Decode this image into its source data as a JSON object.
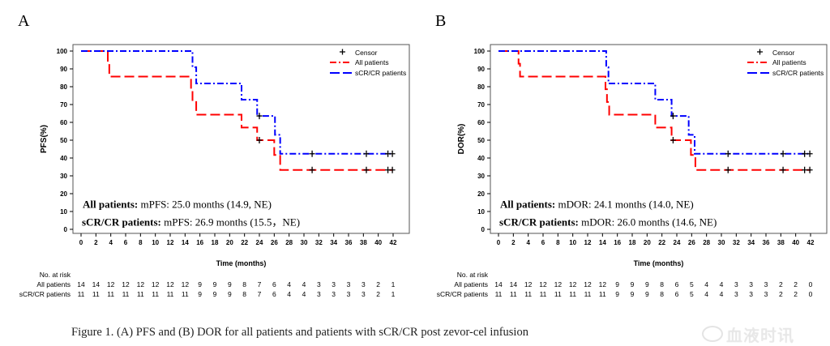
{
  "caption": "Figure 1. (A) PFS and (B) DOR for all patients and patients with sCR/CR post zevor-cel infusion",
  "watermark": "血液时讯",
  "colors": {
    "all": "#ff0000",
    "scr": "#0000ff",
    "axis": "#000000"
  },
  "chart_data": [
    {
      "type": "line",
      "panel_label": "A",
      "ylabel": "PFS(%)",
      "xlabel": "Time (months)",
      "xlim": [
        0,
        42
      ],
      "ylim": [
        0,
        100
      ],
      "xticks": [
        0,
        2,
        4,
        6,
        8,
        10,
        12,
        14,
        16,
        18,
        20,
        22,
        24,
        26,
        28,
        30,
        32,
        34,
        36,
        38,
        40,
        42
      ],
      "yticks": [
        0,
        10,
        20,
        30,
        40,
        50,
        60,
        70,
        80,
        90,
        100
      ],
      "legend": {
        "placement": "top-right",
        "entries": [
          "Censor",
          "All patients",
          "sCR/CR patients"
        ]
      },
      "annotations": [
        {
          "bold": "All patients:",
          "text": " mPFS: 25.0 months (14.9, NE)"
        },
        {
          "bold": "sCR/CR patients:",
          "text": " mPFS: 26.9 months (15.5，NE)"
        }
      ],
      "series": [
        {
          "name": "All patients",
          "color_key": "all",
          "steps": [
            [
              0,
              100
            ],
            [
              3.6,
              92.9
            ],
            [
              3.8,
              85.7
            ],
            [
              14.8,
              78.6
            ],
            [
              15.0,
              71.4
            ],
            [
              15.5,
              64.3
            ],
            [
              21.6,
              57.1
            ],
            [
              23.7,
              50.0
            ],
            [
              26.0,
              41.7
            ],
            [
              26.8,
              33.3
            ]
          ],
          "censors": [
            [
              24.0,
              50.0
            ],
            [
              31.1,
              33.3
            ],
            [
              38.4,
              33.3
            ],
            [
              41.3,
              33.3
            ],
            [
              41.9,
              33.3
            ]
          ],
          "end": 42
        },
        {
          "name": "sCR/CR patients",
          "color_key": "scr",
          "steps": [
            [
              0,
              100
            ],
            [
              15.0,
              90.9
            ],
            [
              15.5,
              81.8
            ],
            [
              21.6,
              72.7
            ],
            [
              23.7,
              63.6
            ],
            [
              26.1,
              53.0
            ],
            [
              26.8,
              42.4
            ]
          ],
          "censors": [
            [
              24.0,
              63.6
            ],
            [
              31.1,
              42.4
            ],
            [
              38.4,
              42.4
            ],
            [
              41.3,
              42.4
            ],
            [
              41.9,
              42.4
            ]
          ],
          "end": 42
        }
      ],
      "risk_table": {
        "title": "No. at risk",
        "rows": [
          {
            "label": "All patients",
            "values": [
              14,
              14,
              12,
              12,
              12,
              12,
              12,
              12,
              9,
              9,
              9,
              8,
              7,
              6,
              4,
              4,
              3,
              3,
              3,
              3,
              2,
              1
            ]
          },
          {
            "label": "sCR/CR patients",
            "values": [
              11,
              11,
              11,
              11,
              11,
              11,
              11,
              11,
              9,
              9,
              9,
              8,
              7,
              6,
              4,
              4,
              3,
              3,
              3,
              3,
              2,
              1
            ]
          }
        ]
      }
    },
    {
      "type": "line",
      "panel_label": "B",
      "ylabel": "DOR(%)",
      "xlabel": "Time (months)",
      "xlim": [
        0,
        42
      ],
      "ylim": [
        0,
        100
      ],
      "xticks": [
        0,
        2,
        4,
        6,
        8,
        10,
        12,
        14,
        16,
        18,
        20,
        22,
        24,
        26,
        28,
        30,
        32,
        34,
        36,
        38,
        40,
        42
      ],
      "yticks": [
        0,
        10,
        20,
        30,
        40,
        50,
        60,
        70,
        80,
        90,
        100
      ],
      "legend": {
        "placement": "top-right",
        "entries": [
          "Censor",
          "All patients",
          "sCR/CR patients"
        ]
      },
      "annotations": [
        {
          "bold": "All patients:",
          "text": " mDOR: 24.1 months (14.0, NE)"
        },
        {
          "bold": "sCR/CR patients:",
          "text": " mDOR: 26.0 months (14.6, NE)"
        }
      ],
      "series": [
        {
          "name": "All patients",
          "color_key": "all",
          "steps": [
            [
              0,
              100
            ],
            [
              2.7,
              92.9
            ],
            [
              2.9,
              85.7
            ],
            [
              14.4,
              78.6
            ],
            [
              14.6,
              71.4
            ],
            [
              14.9,
              64.3
            ],
            [
              21.1,
              57.1
            ],
            [
              23.3,
              50.0
            ],
            [
              25.9,
              41.7
            ],
            [
              26.5,
              33.3
            ]
          ],
          "censors": [
            [
              23.5,
              50.0
            ],
            [
              30.9,
              33.3
            ],
            [
              38.3,
              33.3
            ],
            [
              41.2,
              33.3
            ],
            [
              41.9,
              33.3
            ]
          ],
          "end": 42
        },
        {
          "name": "sCR/CR patients",
          "color_key": "scr",
          "steps": [
            [
              0,
              100
            ],
            [
              14.5,
              90.9
            ],
            [
              14.8,
              81.8
            ],
            [
              21.1,
              72.7
            ],
            [
              23.3,
              63.6
            ],
            [
              25.6,
              53.0
            ],
            [
              26.4,
              42.4
            ]
          ],
          "censors": [
            [
              23.5,
              63.6
            ],
            [
              30.9,
              42.4
            ],
            [
              38.3,
              42.4
            ],
            [
              41.2,
              42.4
            ],
            [
              41.9,
              42.4
            ]
          ],
          "end": 42
        }
      ],
      "risk_table": {
        "title": "No. at risk",
        "rows": [
          {
            "label": "All patients",
            "values": [
              14,
              14,
              12,
              12,
              12,
              12,
              12,
              12,
              9,
              9,
              9,
              8,
              6,
              5,
              4,
              4,
              3,
              3,
              3,
              2,
              2,
              0
            ]
          },
          {
            "label": "sCR/CR patients",
            "values": [
              11,
              11,
              11,
              11,
              11,
              11,
              11,
              11,
              9,
              9,
              9,
              8,
              6,
              5,
              4,
              4,
              3,
              3,
              3,
              2,
              2,
              0
            ]
          }
        ]
      }
    }
  ]
}
